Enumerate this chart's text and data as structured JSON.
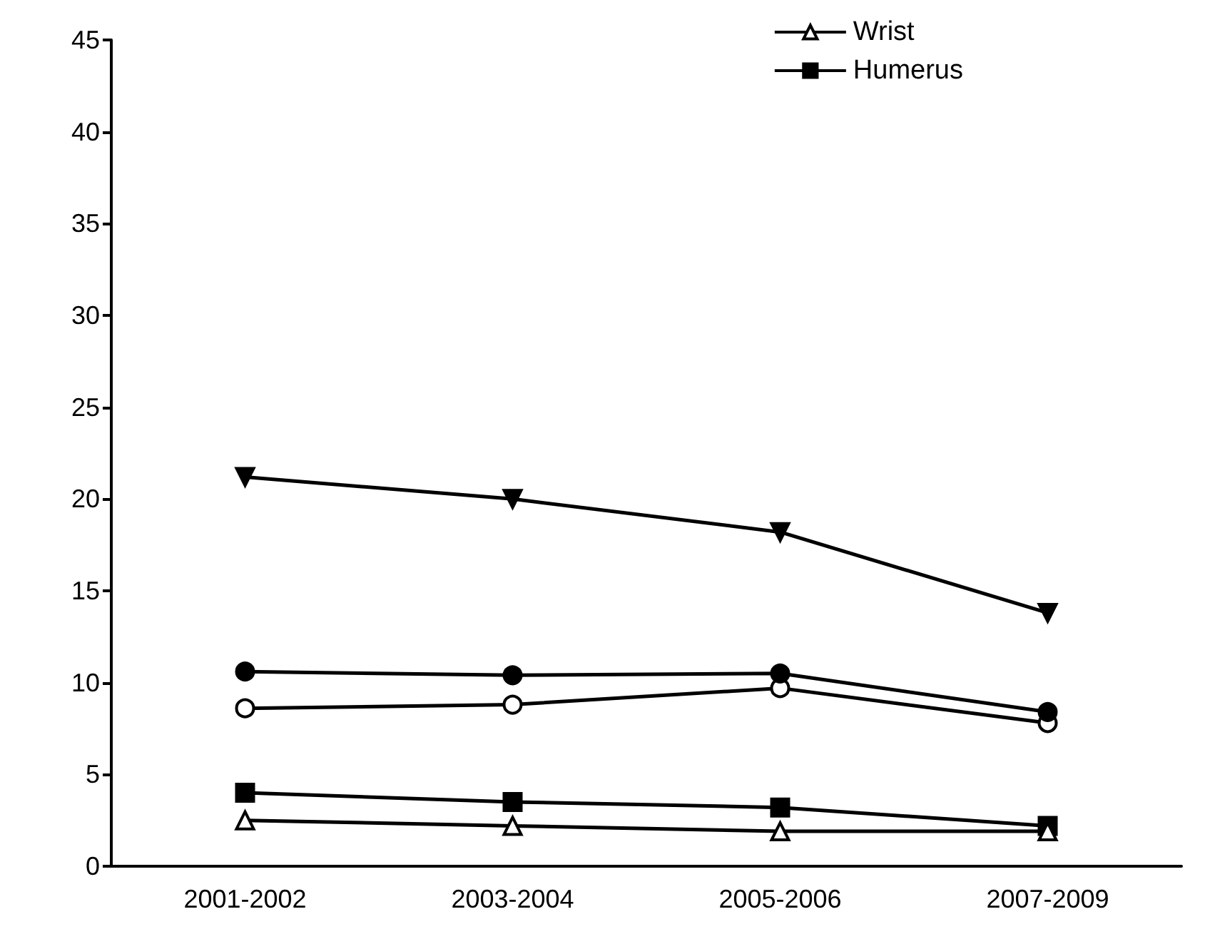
{
  "chart_data": {
    "type": "line",
    "categories": [
      "2001-2002",
      "2003-2004",
      "2005-2006",
      "2007-2009"
    ],
    "series": [
      {
        "color": "#000000",
        "marker": "triangle",
        "values": [
          21.2,
          20.0,
          18.2,
          13.8
        ]
      },
      {
        "color": "#000000",
        "marker": "circle",
        "values": [
          10.6,
          10.4,
          10.5,
          8.4
        ]
      },
      {
        "color": "#000000",
        "marker": "circle",
        "values": [
          8.6,
          8.8,
          9.7,
          7.8
        ]
      },
      {
        "name": "Wrist",
        "color": "#000000",
        "marker": "triangle",
        "values": [
          2.5,
          2.2,
          1.9,
          1.9
        ]
      },
      {
        "name": "Humerus",
        "color": "#000000",
        "marker": "square",
        "values": [
          4.0,
          3.5,
          3.2,
          2.2
        ]
      }
    ],
    "ylim": [
      0,
      45
    ],
    "yticks": [
      0,
      5,
      10,
      15,
      20,
      25,
      30,
      35,
      40,
      45
    ],
    "grid": false,
    "legend": "top right",
    "line_style": "solid"
  }
}
